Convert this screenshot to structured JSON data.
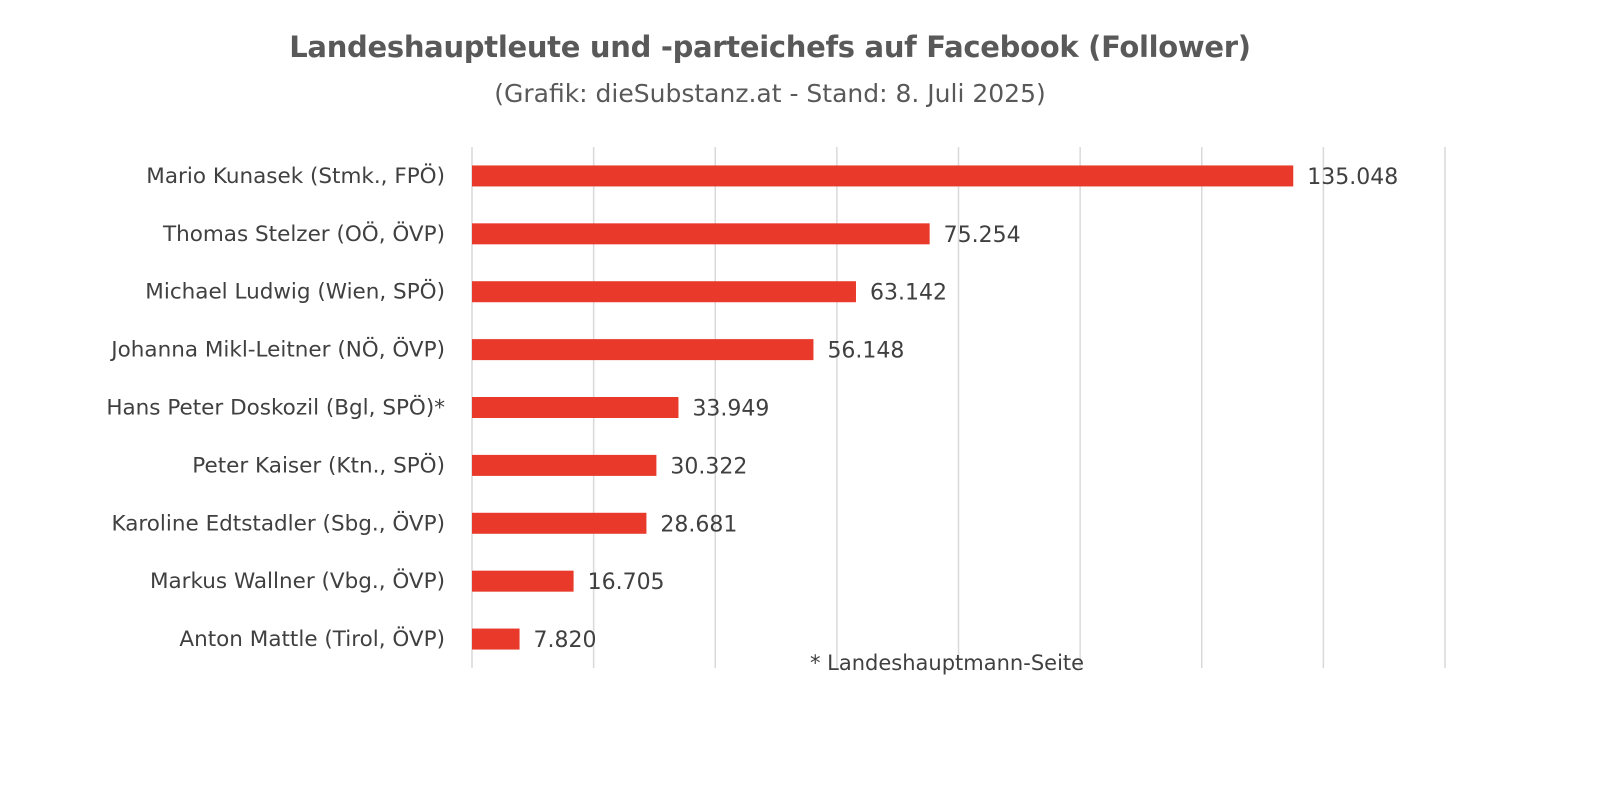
{
  "chart_data": {
    "type": "bar",
    "orientation": "horizontal",
    "title": "Landeshauptleute und -parteichefs auf Facebook (Follower)",
    "subtitle": "(Grafik: dieSubstanz.at - Stand: 8. Juli 2025)",
    "categories": [
      "Mario Kunasek (Stmk., FPÖ)",
      "Thomas Stelzer (OÖ, ÖVP)",
      "Michael Ludwig (Wien, SPÖ)",
      "Johanna Mikl-Leitner (NÖ, ÖVP)",
      "Hans Peter Doskozil (Bgl, SPÖ)*",
      "Peter Kaiser (Ktn., SPÖ)",
      "Karoline Edtstadler (Sbg., ÖVP)",
      "Markus Wallner (Vbg., ÖVP)",
      "Anton Mattle (Tirol, ÖVP)"
    ],
    "values": [
      135048,
      75254,
      63142,
      56148,
      33949,
      30322,
      28681,
      16705,
      7820
    ],
    "value_labels": [
      "135.048",
      "75.254",
      "63.142",
      "56.148",
      "33.949",
      "30.322",
      "28.681",
      "16.705",
      "7.820"
    ],
    "xlim": [
      0,
      160000
    ],
    "x_tick_step": 20000,
    "grid": true,
    "tick_labels_visible": false,
    "bar_color": "#e8392a",
    "grid_color": "#d9d9d9",
    "footnote": "* Landeshauptmann-Seite"
  }
}
